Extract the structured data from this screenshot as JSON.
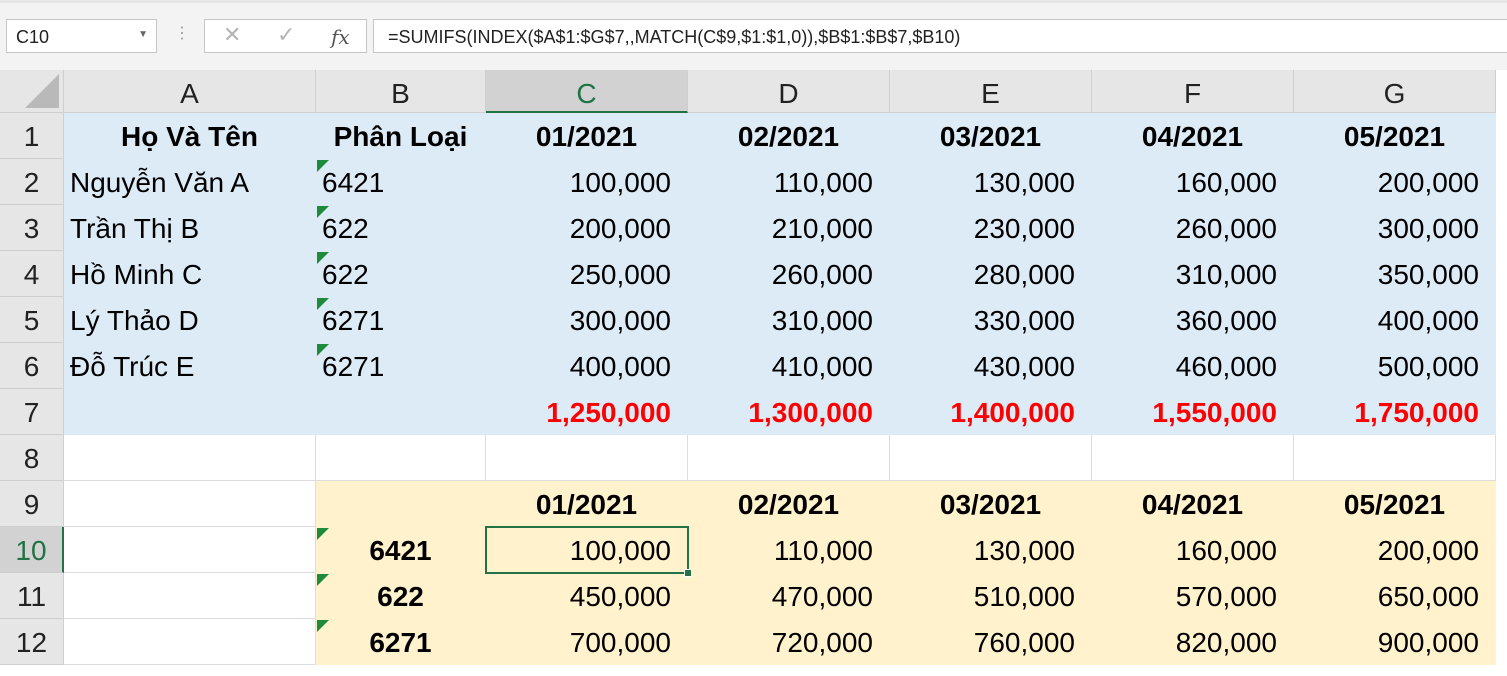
{
  "formula_bar": {
    "name_box": "C10",
    "cancel_glyph": "✕",
    "enter_glyph": "✓",
    "fx_label": "fx",
    "formula": "=SUMIFS(INDEX($A$1:$G$7,,MATCH(C$9,$1:$1,0)),$B$1:$B$7,$B10)"
  },
  "sheet": {
    "columns": [
      "A",
      "B",
      "C",
      "D",
      "E",
      "F",
      "G"
    ],
    "rows": [
      "1",
      "2",
      "3",
      "4",
      "5",
      "6",
      "7",
      "8",
      "9",
      "10",
      "11",
      "12"
    ],
    "active_cell": "C10",
    "colors": {
      "blue_fill": "#ddebf7",
      "yellow_fill": "#fff2cc",
      "total_red": "#ff0000",
      "selection_green": "#217346"
    }
  },
  "table1": {
    "headers": [
      "Họ Và Tên",
      "Phân Loại",
      "01/2021",
      "02/2021",
      "03/2021",
      "04/2021",
      "05/2021"
    ],
    "rows": [
      [
        "Nguyễn Văn A",
        "6421",
        "100,000",
        "110,000",
        "130,000",
        "160,000",
        "200,000"
      ],
      [
        "Trần Thị B",
        "622",
        "200,000",
        "210,000",
        "230,000",
        "260,000",
        "300,000"
      ],
      [
        "Hồ Minh C",
        "622",
        "250,000",
        "260,000",
        "280,000",
        "310,000",
        "350,000"
      ],
      [
        "Lý Thảo D",
        "6271",
        "300,000",
        "310,000",
        "330,000",
        "360,000",
        "400,000"
      ],
      [
        "Đỗ Trúc E",
        "6271",
        "400,000",
        "410,000",
        "430,000",
        "460,000",
        "500,000"
      ]
    ],
    "totals": [
      "",
      "",
      "1,250,000",
      "1,300,000",
      "1,400,000",
      "1,550,000",
      "1,750,000"
    ]
  },
  "table2": {
    "headers": [
      "",
      "01/2021",
      "02/2021",
      "03/2021",
      "04/2021",
      "05/2021"
    ],
    "rows": [
      [
        "6421",
        "100,000",
        "110,000",
        "130,000",
        "160,000",
        "200,000"
      ],
      [
        "622",
        "450,000",
        "470,000",
        "510,000",
        "570,000",
        "650,000"
      ],
      [
        "6271",
        "700,000",
        "720,000",
        "760,000",
        "820,000",
        "900,000"
      ]
    ]
  }
}
